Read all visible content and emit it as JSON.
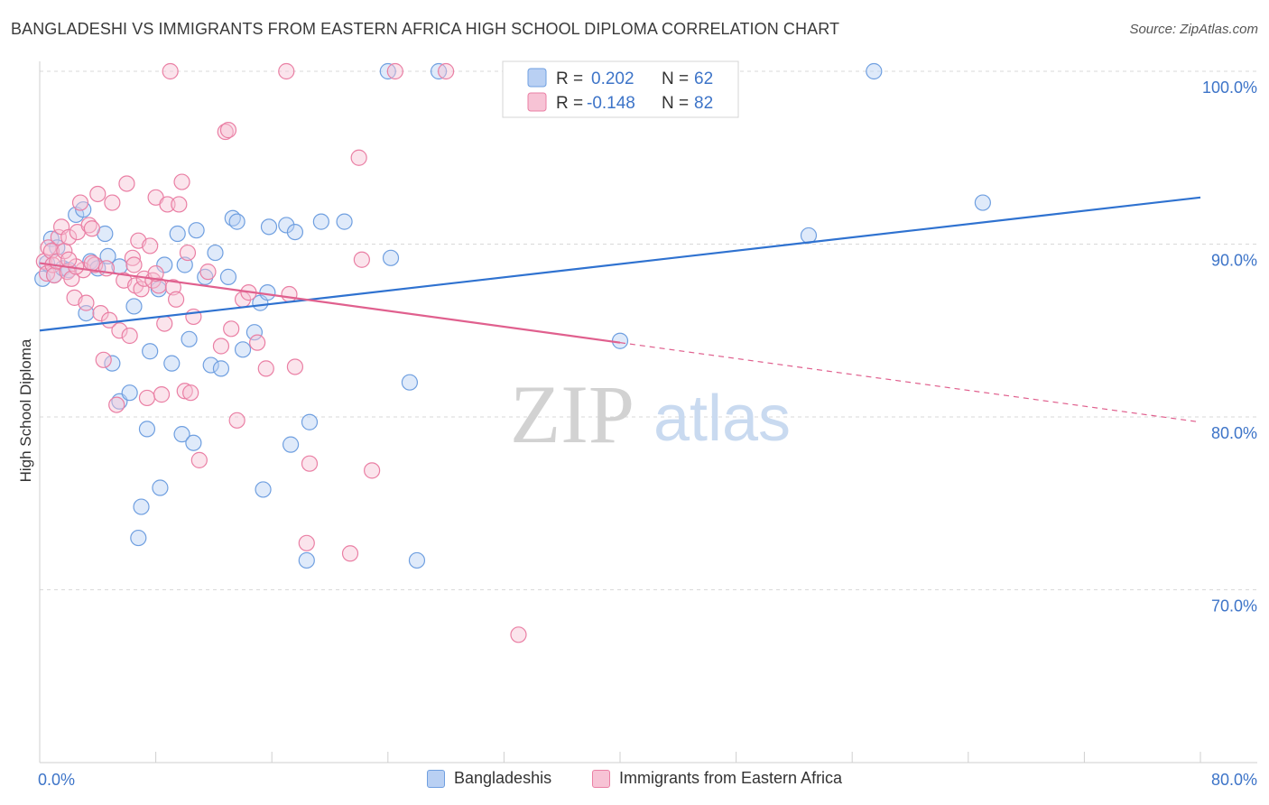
{
  "title": "BANGLADESHI VS IMMIGRANTS FROM EASTERN AFRICA HIGH SCHOOL DIPLOMA CORRELATION CHART",
  "source": "Source: ZipAtlas.com",
  "watermark": {
    "zip": "ZIP",
    "atlas": "atlas"
  },
  "colors": {
    "blue": "#6f9fe0",
    "blue_fill": "#b9d0f3",
    "blue_line": "#2f72d0",
    "pink": "#ea7fa4",
    "pink_fill": "#f7c3d5",
    "pink_line": "#e0608e",
    "axis_text": "#3d74c8",
    "grid": "#d9d9d9"
  },
  "chart_data": {
    "type": "scatter",
    "xlabel": "",
    "ylabel": "High School Diploma",
    "xlim": [
      0,
      80
    ],
    "ylim": [
      60,
      100
    ],
    "x_tick_labels": [
      "0.0%",
      "80.0%"
    ],
    "y_tick_labels": [
      "100.0%",
      "90.0%",
      "80.0%",
      "70.0%"
    ],
    "y_ticks": [
      100,
      90,
      80,
      70
    ],
    "grid": true,
    "legend_top": [
      {
        "r_label": "R =",
        "r_value": "0.202",
        "n_label": "N =",
        "n_value": "62"
      },
      {
        "r_label": "R =",
        "r_value": "-0.148",
        "n_label": "N =",
        "n_value": "82"
      }
    ],
    "series": [
      {
        "name": "Bangladeshis",
        "color": "blue",
        "trend": {
          "x0": 0,
          "y0": 85.0,
          "x1": 80,
          "y1": 92.7
        },
        "points": [
          [
            0.2,
            88.0
          ],
          [
            0.5,
            88.9
          ],
          [
            0.8,
            90.3
          ],
          [
            1.0,
            88.2
          ],
          [
            1.2,
            89.8
          ],
          [
            1.6,
            88.6
          ],
          [
            2.0,
            88.5
          ],
          [
            2.5,
            91.7
          ],
          [
            3.0,
            92.0
          ],
          [
            3.2,
            86.0
          ],
          [
            3.5,
            89.0
          ],
          [
            4.0,
            88.6
          ],
          [
            4.5,
            90.6
          ],
          [
            4.7,
            89.3
          ],
          [
            5.0,
            83.1
          ],
          [
            5.5,
            88.7
          ],
          [
            5.5,
            80.9
          ],
          [
            6.2,
            81.4
          ],
          [
            6.5,
            86.4
          ],
          [
            6.8,
            73.0
          ],
          [
            7.0,
            74.8
          ],
          [
            7.4,
            79.3
          ],
          [
            7.6,
            83.8
          ],
          [
            8.2,
            87.4
          ],
          [
            8.3,
            75.9
          ],
          [
            8.6,
            88.8
          ],
          [
            9.1,
            83.1
          ],
          [
            9.5,
            90.6
          ],
          [
            9.8,
            79.0
          ],
          [
            10.0,
            88.8
          ],
          [
            10.3,
            84.5
          ],
          [
            10.6,
            78.5
          ],
          [
            10.8,
            90.8
          ],
          [
            11.4,
            88.1
          ],
          [
            11.8,
            83.0
          ],
          [
            12.1,
            89.5
          ],
          [
            12.5,
            82.8
          ],
          [
            13.0,
            88.1
          ],
          [
            13.3,
            91.5
          ],
          [
            13.6,
            91.3
          ],
          [
            14.0,
            83.9
          ],
          [
            14.8,
            84.9
          ],
          [
            15.2,
            86.6
          ],
          [
            15.4,
            75.8
          ],
          [
            15.7,
            87.2
          ],
          [
            15.8,
            91.0
          ],
          [
            17.0,
            91.1
          ],
          [
            17.3,
            78.4
          ],
          [
            17.6,
            90.7
          ],
          [
            18.6,
            79.7
          ],
          [
            18.4,
            71.7
          ],
          [
            19.4,
            91.3
          ],
          [
            21.0,
            91.3
          ],
          [
            24.0,
            100.0
          ],
          [
            24.2,
            89.2
          ],
          [
            25.5,
            82.0
          ],
          [
            26.0,
            71.7
          ],
          [
            27.5,
            100.0
          ],
          [
            40.0,
            84.4
          ],
          [
            53.0,
            90.5
          ],
          [
            57.5,
            100.0
          ],
          [
            65.0,
            92.4
          ]
        ]
      },
      {
        "name": "Immigrants from Eastern Africa",
        "color": "pink",
        "trend": {
          "x0": 0,
          "y0": 88.9,
          "x1": 40,
          "y1": 84.3,
          "dash_x1": 80,
          "dash_y1": 79.7
        },
        "points": [
          [
            0.3,
            89.0
          ],
          [
            0.5,
            88.3
          ],
          [
            0.6,
            89.8
          ],
          [
            0.8,
            89.6
          ],
          [
            0.9,
            88.8
          ],
          [
            1.0,
            88.2
          ],
          [
            1.2,
            89.0
          ],
          [
            1.3,
            90.4
          ],
          [
            1.5,
            91.0
          ],
          [
            1.7,
            89.6
          ],
          [
            1.9,
            88.4
          ],
          [
            2.0,
            90.4
          ],
          [
            2.2,
            88.0
          ],
          [
            2.4,
            86.9
          ],
          [
            2.6,
            90.7
          ],
          [
            2.8,
            92.4
          ],
          [
            3.0,
            88.5
          ],
          [
            3.2,
            86.6
          ],
          [
            3.4,
            91.1
          ],
          [
            3.6,
            90.9
          ],
          [
            3.8,
            88.8
          ],
          [
            4.0,
            92.9
          ],
          [
            4.2,
            86.0
          ],
          [
            4.4,
            83.3
          ],
          [
            4.6,
            88.6
          ],
          [
            4.8,
            85.6
          ],
          [
            5.0,
            92.4
          ],
          [
            5.3,
            80.7
          ],
          [
            5.5,
            85.0
          ],
          [
            5.8,
            87.9
          ],
          [
            6.0,
            93.5
          ],
          [
            6.2,
            84.7
          ],
          [
            6.4,
            89.2
          ],
          [
            6.6,
            87.6
          ],
          [
            6.8,
            90.2
          ],
          [
            7.0,
            87.4
          ],
          [
            7.2,
            88.0
          ],
          [
            7.4,
            81.1
          ],
          [
            7.6,
            89.9
          ],
          [
            7.8,
            87.9
          ],
          [
            8.0,
            92.7
          ],
          [
            8.2,
            87.6
          ],
          [
            8.4,
            81.3
          ],
          [
            8.6,
            85.4
          ],
          [
            8.8,
            92.3
          ],
          [
            9.0,
            100.0
          ],
          [
            9.2,
            87.5
          ],
          [
            9.4,
            86.8
          ],
          [
            9.6,
            92.3
          ],
          [
            9.8,
            93.6
          ],
          [
            10.0,
            81.5
          ],
          [
            10.2,
            89.5
          ],
          [
            10.4,
            81.4
          ],
          [
            10.6,
            85.8
          ],
          [
            11.0,
            77.5
          ],
          [
            12.5,
            84.1
          ],
          [
            12.8,
            96.5
          ],
          [
            13.0,
            96.6
          ],
          [
            13.2,
            85.1
          ],
          [
            13.6,
            79.8
          ],
          [
            14.0,
            86.8
          ],
          [
            14.4,
            87.2
          ],
          [
            15.0,
            84.3
          ],
          [
            15.6,
            82.8
          ],
          [
            17.0,
            100.0
          ],
          [
            17.2,
            87.1
          ],
          [
            17.6,
            82.9
          ],
          [
            18.4,
            72.7
          ],
          [
            18.6,
            77.3
          ],
          [
            21.4,
            72.1
          ],
          [
            22.0,
            95.0
          ],
          [
            22.2,
            89.1
          ],
          [
            22.9,
            76.9
          ],
          [
            24.5,
            100.0
          ],
          [
            28.0,
            100.0
          ],
          [
            33.0,
            67.4
          ],
          [
            8.0,
            88.3
          ],
          [
            6.5,
            88.8
          ],
          [
            3.6,
            88.9
          ],
          [
            2.5,
            88.7
          ],
          [
            11.6,
            88.4
          ],
          [
            2.0,
            89.1
          ]
        ]
      }
    ]
  }
}
